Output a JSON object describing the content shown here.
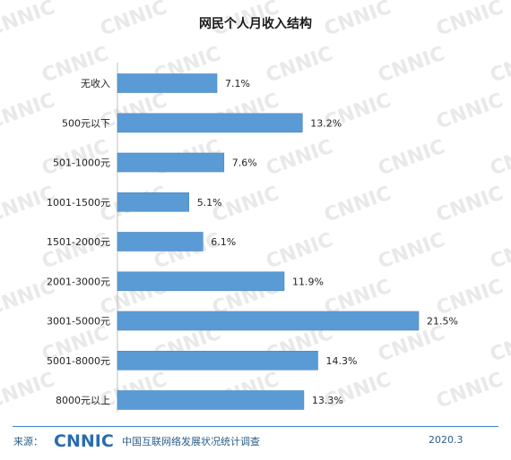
{
  "chart_data": {
    "type": "bar",
    "orientation": "horizontal",
    "title": "网民个人月收入结构",
    "categories": [
      "无收入",
      "500元以下",
      "501-1000元",
      "1001-1500元",
      "1501-2000元",
      "2001-3000元",
      "3001-5000元",
      "5001-8000元",
      "8000元以上"
    ],
    "values": [
      7.1,
      13.2,
      7.6,
      5.1,
      6.1,
      11.9,
      21.5,
      14.3,
      13.3
    ],
    "value_labels": [
      "7.1%",
      "13.2%",
      "7.6%",
      "5.1%",
      "6.1%",
      "11.9%",
      "21.5%",
      "14.3%",
      "13.3%"
    ],
    "unit": "%",
    "xlim": [
      0,
      21.5
    ],
    "grid": false,
    "legend": "none",
    "bar_color": "#5b9bd5"
  },
  "footer": {
    "source_label": "来源：",
    "logo_text": "CNNIC",
    "org": "中国互联网络发展状况统计调查",
    "date": "2020.3"
  },
  "watermark_text": "CNNIC",
  "colors": {
    "accent": "#3a86c8",
    "bar": "#5b9bd5"
  }
}
